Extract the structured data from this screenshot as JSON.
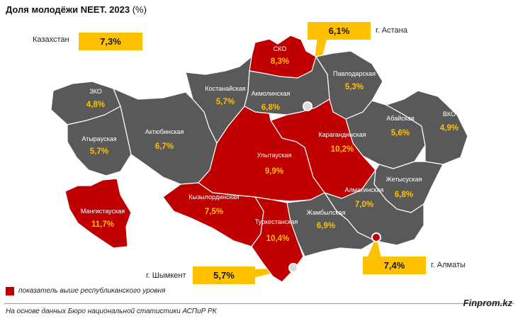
{
  "title": {
    "main": "Доля молодёжи NEET. 2023",
    "unit": "(%)"
  },
  "colors": {
    "above": "#C00000",
    "normal": "#595959",
    "callout": "#FFC000",
    "value": "#FFC000"
  },
  "callouts": {
    "kz": {
      "label": "Казахстан",
      "value": "7,3%"
    },
    "astana": {
      "label": "г. Астана",
      "value": "6,1%"
    },
    "almaty": {
      "label": "г. Алматы",
      "value": "7,4%"
    },
    "shymkent": {
      "label": "г. Шымкент",
      "value": "5,7%"
    }
  },
  "regions": [
    {
      "name": "СКО",
      "value": "8,3%",
      "above": true
    },
    {
      "name": "Павлодарская",
      "value": "5,3%",
      "above": false
    },
    {
      "name": "Костанайская",
      "value": "5,7%",
      "above": false
    },
    {
      "name": "Акмолинская",
      "value": "6,8%",
      "above": false
    },
    {
      "name": "ЗКО",
      "value": "4,8%",
      "above": false
    },
    {
      "name": "Актюбинская",
      "value": "6,7%",
      "above": false
    },
    {
      "name": "Атырауская",
      "value": "5,7%",
      "above": false
    },
    {
      "name": "Абайская",
      "value": "5,6%",
      "above": false
    },
    {
      "name": "ВКО",
      "value": "4,9%",
      "above": false
    },
    {
      "name": "Карагандинская",
      "value": "10,2%",
      "above": true
    },
    {
      "name": "Улытауская",
      "value": "9,9%",
      "above": true
    },
    {
      "name": "Жетысуская",
      "value": "6,8%",
      "above": false
    },
    {
      "name": "Алматинская",
      "value": "7,0%",
      "above": false
    },
    {
      "name": "Кызылординская",
      "value": "7,5%",
      "above": true
    },
    {
      "name": "Мангистауская",
      "value": "11,7%",
      "above": true
    },
    {
      "name": "Туркестанская",
      "value": "10,4%",
      "above": true
    },
    {
      "name": "Жамбылская",
      "value": "6,9%",
      "above": false
    }
  ],
  "legend": {
    "text": "показатель выше республиканского уровня"
  },
  "footer": {
    "source": "На основе данных Бюро национальной статистики АСПиР РК",
    "brand": "Finprom.kz"
  }
}
